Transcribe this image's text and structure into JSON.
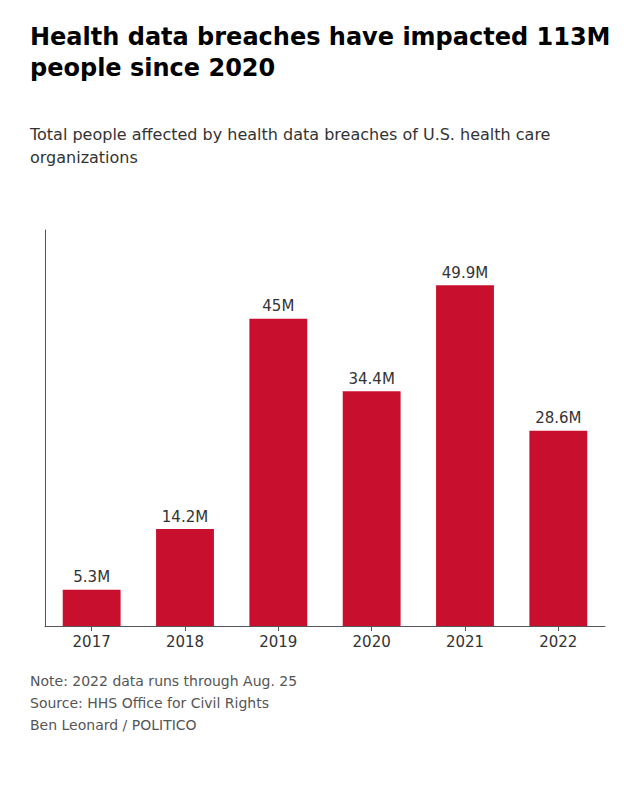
{
  "chart_data": {
    "type": "bar",
    "title": "Health data breaches have impacted 113M\npeople since 2020",
    "subtitle": "Total people affected by health data breaches of U.S. health care\norganizations",
    "annotations": [
      "Note: 2022 data runs through Aug. 25\nSource: HHS Office for Civil Rights\nBen Leonard / POLITICO"
    ],
    "categories": [
      "2017",
      "2018",
      "2019",
      "2020",
      "2021",
      "2022"
    ],
    "values": [
      5.3,
      14.2,
      45.0,
      34.4,
      49.9,
      28.6
    ],
    "value_labels": [
      "5.3M",
      "14.2M",
      "45M",
      "34.4M",
      "49.9M",
      "28.6M"
    ],
    "color": "#c8102e",
    "ylim": [
      0,
      58
    ],
    "grid": false,
    "data_labels": true,
    "tick_labels": "x"
  }
}
